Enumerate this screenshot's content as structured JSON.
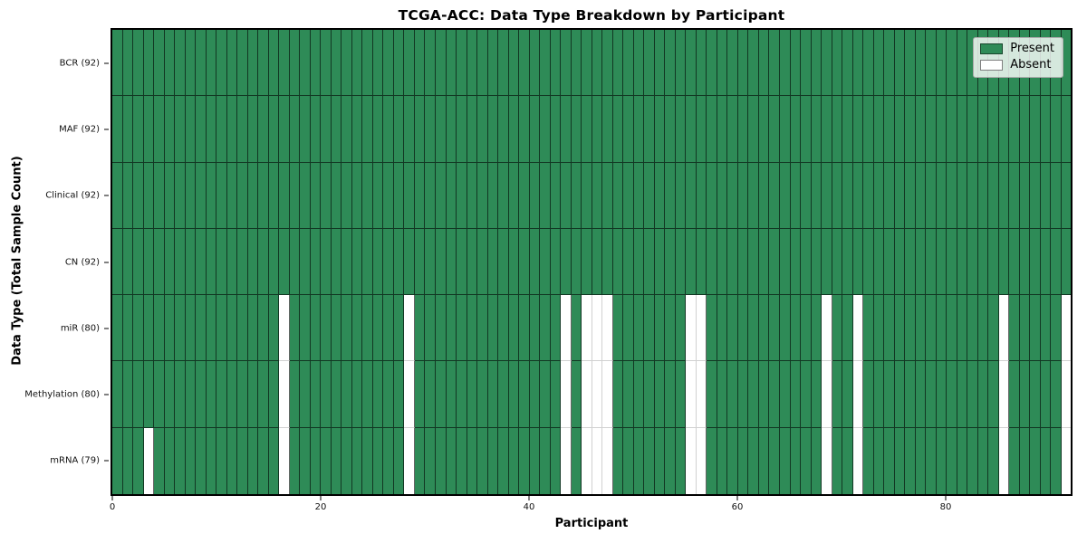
{
  "chart_data": {
    "type": "heatmap",
    "title": "TCGA-ACC: Data Type Breakdown by Participant",
    "xlabel": "Participant",
    "ylabel": "Data Type (Total Sample Count)",
    "x_ticks": [
      0,
      20,
      40,
      60,
      80
    ],
    "x_range": [
      0,
      92
    ],
    "n_participants": 92,
    "legend_position": "upper-right",
    "rows": [
      {
        "label": "BCR (92)",
        "data_type": "BCR",
        "present_count": 92,
        "absent_participants": []
      },
      {
        "label": "MAF (92)",
        "data_type": "MAF",
        "present_count": 92,
        "absent_participants": []
      },
      {
        "label": "Clinical (92)",
        "data_type": "Clinical",
        "present_count": 92,
        "absent_participants": []
      },
      {
        "label": "CN (92)",
        "data_type": "CN",
        "present_count": 92,
        "absent_participants": []
      },
      {
        "label": "miR (80)",
        "data_type": "miR",
        "present_count": 80,
        "absent_participants": [
          16,
          28,
          43,
          45,
          46,
          47,
          55,
          56,
          68,
          71,
          85,
          91
        ]
      },
      {
        "label": "Methylation (80)",
        "data_type": "Methylation",
        "present_count": 80,
        "absent_participants": [
          16,
          28,
          43,
          45,
          46,
          47,
          55,
          56,
          68,
          71,
          85,
          91
        ]
      },
      {
        "label": "mRNA (79)",
        "data_type": "mRNA",
        "present_count": 79,
        "absent_participants": [
          3,
          16,
          28,
          43,
          45,
          46,
          47,
          55,
          56,
          68,
          71,
          85,
          91
        ]
      }
    ],
    "legend": [
      {
        "label": "Present",
        "color": "#2e8b57"
      },
      {
        "label": "Absent",
        "color": "#ffffff"
      }
    ],
    "colors": {
      "present": "#2e8b57",
      "absent": "#ffffff",
      "cell_edge_dark": "rgba(0,0,0,0.6)",
      "cell_edge_light": "rgba(0,0,0,0.18)",
      "spine": "#000000"
    }
  }
}
